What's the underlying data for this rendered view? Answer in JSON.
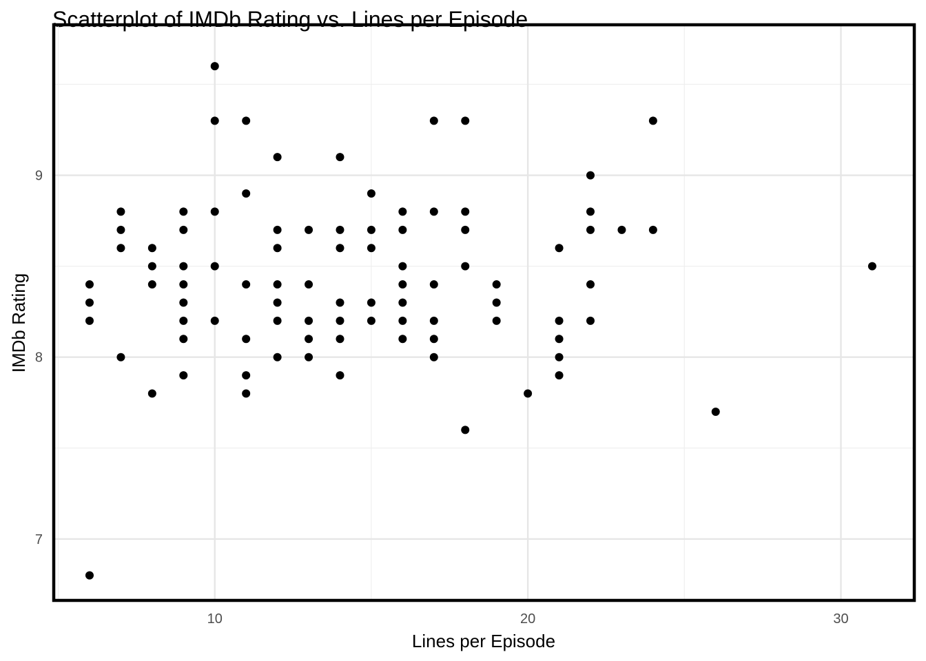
{
  "chart_data": {
    "type": "scatter",
    "title": "Scatterplot of IMDb Rating vs. Lines per Episode",
    "xlabel": "Lines per Episode",
    "ylabel": "IMDb Rating",
    "xlim": [
      4.9,
      32.3
    ],
    "ylim": [
      6.67,
      9.82
    ],
    "x_ticks": [
      10,
      20,
      30
    ],
    "y_ticks": [
      7,
      8,
      9
    ],
    "grid": true,
    "colors": {
      "point": "#000000",
      "grid": "#e6e6e6",
      "tick_text": "#4d4d4d"
    },
    "points": [
      {
        "x": 6,
        "y": 8.4
      },
      {
        "x": 6,
        "y": 8.3
      },
      {
        "x": 6,
        "y": 8.2
      },
      {
        "x": 6,
        "y": 6.8
      },
      {
        "x": 7,
        "y": 8.8
      },
      {
        "x": 7,
        "y": 8.7
      },
      {
        "x": 7,
        "y": 8.6
      },
      {
        "x": 7,
        "y": 8.0
      },
      {
        "x": 8,
        "y": 8.6
      },
      {
        "x": 8,
        "y": 8.5
      },
      {
        "x": 8,
        "y": 8.4
      },
      {
        "x": 8,
        "y": 7.8
      },
      {
        "x": 9,
        "y": 8.8
      },
      {
        "x": 9,
        "y": 8.7
      },
      {
        "x": 9,
        "y": 8.5
      },
      {
        "x": 9,
        "y": 8.4
      },
      {
        "x": 9,
        "y": 8.3
      },
      {
        "x": 9,
        "y": 8.2
      },
      {
        "x": 9,
        "y": 8.1
      },
      {
        "x": 9,
        "y": 7.9
      },
      {
        "x": 10,
        "y": 9.6
      },
      {
        "x": 10,
        "y": 9.3
      },
      {
        "x": 10,
        "y": 8.8
      },
      {
        "x": 10,
        "y": 8.5
      },
      {
        "x": 10,
        "y": 8.2
      },
      {
        "x": 11,
        "y": 9.3
      },
      {
        "x": 11,
        "y": 8.9
      },
      {
        "x": 11,
        "y": 8.4
      },
      {
        "x": 11,
        "y": 8.1
      },
      {
        "x": 11,
        "y": 7.9
      },
      {
        "x": 11,
        "y": 7.8
      },
      {
        "x": 12,
        "y": 9.1
      },
      {
        "x": 12,
        "y": 8.7
      },
      {
        "x": 12,
        "y": 8.6
      },
      {
        "x": 12,
        "y": 8.4
      },
      {
        "x": 12,
        "y": 8.3
      },
      {
        "x": 12,
        "y": 8.2
      },
      {
        "x": 12,
        "y": 8.0
      },
      {
        "x": 13,
        "y": 8.7
      },
      {
        "x": 13,
        "y": 8.4
      },
      {
        "x": 13,
        "y": 8.2
      },
      {
        "x": 13,
        "y": 8.1
      },
      {
        "x": 13,
        "y": 8.0
      },
      {
        "x": 14,
        "y": 9.1
      },
      {
        "x": 14,
        "y": 8.7
      },
      {
        "x": 14,
        "y": 8.6
      },
      {
        "x": 14,
        "y": 8.3
      },
      {
        "x": 14,
        "y": 8.2
      },
      {
        "x": 14,
        "y": 8.1
      },
      {
        "x": 14,
        "y": 7.9
      },
      {
        "x": 15,
        "y": 8.9
      },
      {
        "x": 15,
        "y": 8.7
      },
      {
        "x": 15,
        "y": 8.6
      },
      {
        "x": 15,
        "y": 8.3
      },
      {
        "x": 15,
        "y": 8.2
      },
      {
        "x": 16,
        "y": 8.8
      },
      {
        "x": 16,
        "y": 8.7
      },
      {
        "x": 16,
        "y": 8.5
      },
      {
        "x": 16,
        "y": 8.4
      },
      {
        "x": 16,
        "y": 8.3
      },
      {
        "x": 16,
        "y": 8.2
      },
      {
        "x": 16,
        "y": 8.1
      },
      {
        "x": 17,
        "y": 9.3
      },
      {
        "x": 17,
        "y": 8.8
      },
      {
        "x": 17,
        "y": 8.4
      },
      {
        "x": 17,
        "y": 8.2
      },
      {
        "x": 17,
        "y": 8.1
      },
      {
        "x": 17,
        "y": 8.0
      },
      {
        "x": 18,
        "y": 9.3
      },
      {
        "x": 18,
        "y": 8.8
      },
      {
        "x": 18,
        "y": 8.7
      },
      {
        "x": 18,
        "y": 8.5
      },
      {
        "x": 18,
        "y": 7.6
      },
      {
        "x": 19,
        "y": 8.4
      },
      {
        "x": 19,
        "y": 8.3
      },
      {
        "x": 19,
        "y": 8.2
      },
      {
        "x": 20,
        "y": 7.8
      },
      {
        "x": 21,
        "y": 8.6
      },
      {
        "x": 21,
        "y": 8.2
      },
      {
        "x": 21,
        "y": 8.1
      },
      {
        "x": 21,
        "y": 8.0
      },
      {
        "x": 21,
        "y": 7.9
      },
      {
        "x": 22,
        "y": 9.0
      },
      {
        "x": 22,
        "y": 8.8
      },
      {
        "x": 22,
        "y": 8.7
      },
      {
        "x": 22,
        "y": 8.4
      },
      {
        "x": 22,
        "y": 8.2
      },
      {
        "x": 23,
        "y": 8.7
      },
      {
        "x": 24,
        "y": 9.3
      },
      {
        "x": 24,
        "y": 8.7
      },
      {
        "x": 26,
        "y": 7.7
      },
      {
        "x": 31,
        "y": 8.5
      }
    ]
  }
}
